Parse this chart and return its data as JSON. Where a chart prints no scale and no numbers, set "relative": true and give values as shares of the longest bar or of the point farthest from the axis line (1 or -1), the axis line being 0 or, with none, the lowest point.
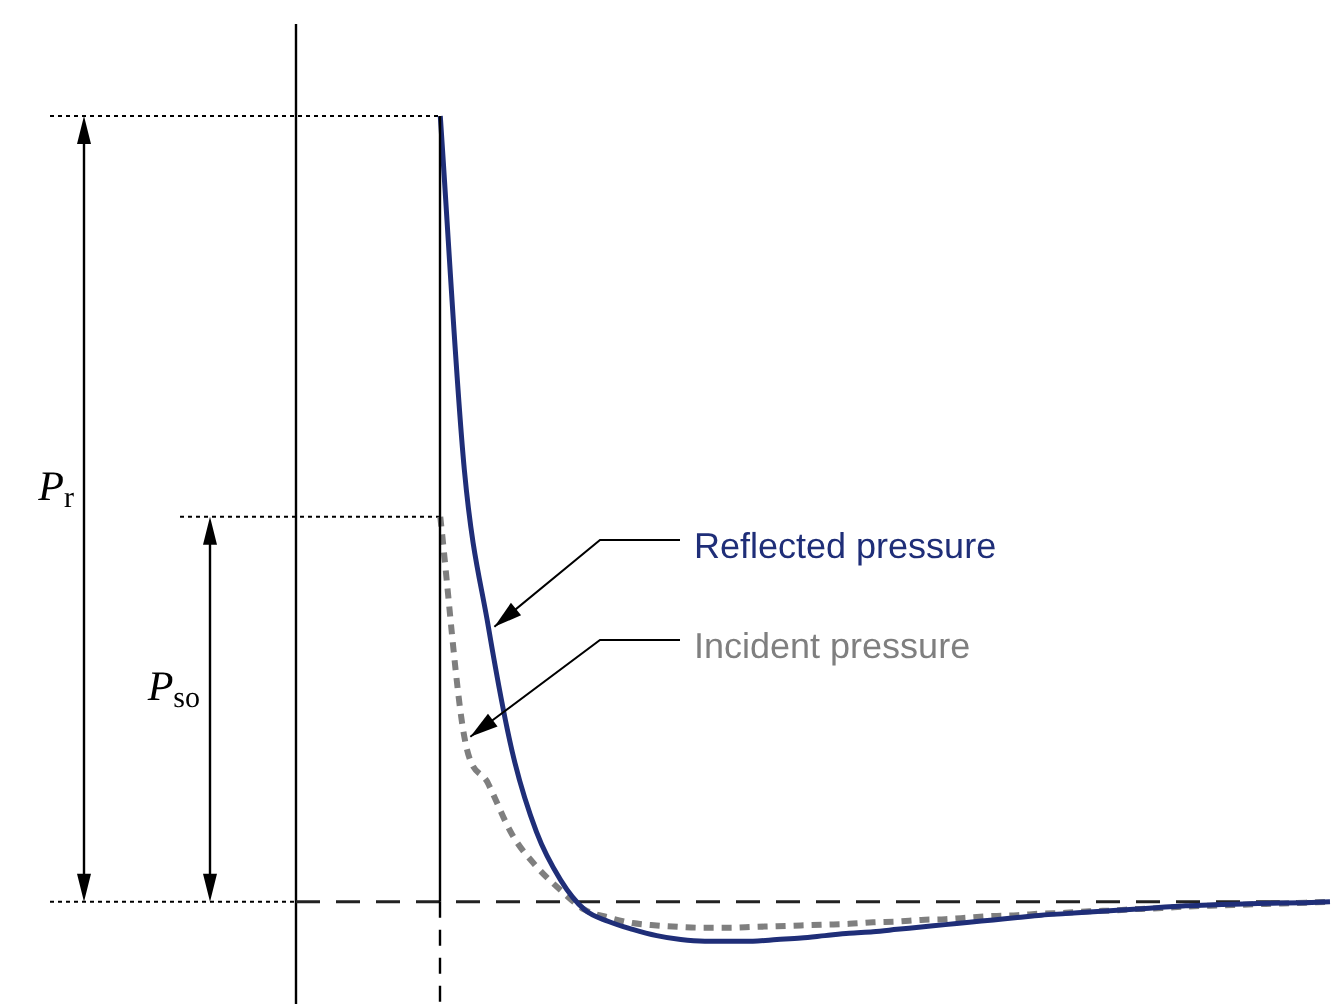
{
  "chart_data": {
    "type": "line",
    "relative": true,
    "legend": false,
    "grid": false,
    "categories": [
      null,
      null,
      null,
      null,
      null,
      null,
      null,
      null,
      null,
      null,
      null,
      null,
      null,
      null,
      null,
      null,
      null,
      null,
      null,
      null,
      null,
      null,
      null,
      null,
      null,
      null,
      null,
      null,
      null,
      null,
      null,
      null,
      null,
      null,
      null,
      null,
      null,
      null,
      null,
      null,
      null,
      null,
      null,
      null
    ],
    "series": [
      {
        "name": "Reflected pressure",
        "color": "#1f2e78",
        "line_style": "solid",
        "values": [
          null,
          null,
          null,
          null,
          null,
          null,
          1,
          0.55,
          0.35,
          0.19,
          0.089,
          0.028,
          -0.01,
          -0.025,
          -0.035,
          -0.043,
          -0.048,
          -0.05,
          -0.05,
          -0.05,
          -0.048,
          -0.046,
          -0.043,
          -0.04,
          -0.038,
          -0.035,
          -0.032,
          -0.029,
          -0.026,
          -0.023,
          -0.02,
          -0.017,
          -0.015,
          -0.013,
          -0.011,
          -0.009,
          -0.007,
          -0.005,
          -0.004,
          -0.003,
          -0.002,
          -0.0015,
          -0.001,
          0
        ]
      },
      {
        "name": "Incident pressure",
        "color": "#7f7f7f",
        "line_style": "dotted",
        "values": [
          null,
          null,
          null,
          null,
          null,
          null,
          0.49,
          0.21,
          0.15,
          0.085,
          0.045,
          0.015,
          -0.01,
          -0.02,
          -0.027,
          -0.03,
          -0.032,
          -0.033,
          -0.033,
          -0.032,
          -0.031,
          -0.03,
          -0.029,
          -0.028,
          -0.026,
          -0.025,
          -0.023,
          -0.022,
          -0.02,
          -0.018,
          -0.017,
          -0.015,
          -0.014,
          -0.012,
          -0.011,
          -0.009,
          -0.008,
          -0.006,
          -0.005,
          -0.004,
          -0.003,
          -0.002,
          -0.001,
          0
        ]
      }
    ],
    "ref_lines": [
      {
        "axis": "y",
        "value": 0,
        "color": "#222222",
        "line_style": "dashed"
      },
      {
        "axis": "y",
        "value": 1,
        "color": "#000000",
        "line_style": "dotted"
      },
      {
        "axis": "y",
        "value": 0.49,
        "color": "#000000",
        "line_style": "dotted"
      }
    ],
    "annotations": [
      "P$_{r}$",
      "P$_{so}$"
    ]
  }
}
